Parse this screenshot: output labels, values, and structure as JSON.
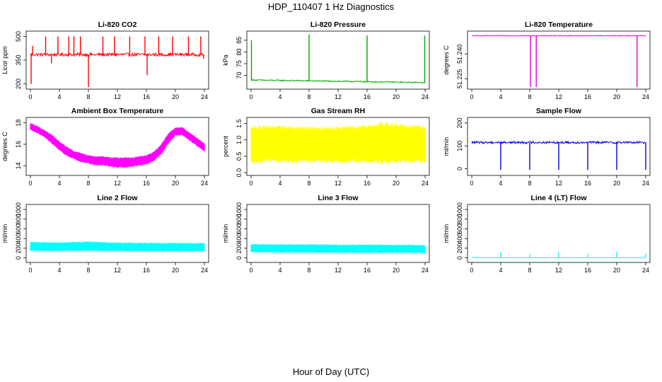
{
  "page": {
    "title": "HDP_110407  1 Hz Diagnostics",
    "x_axis_label": "Hour of Day (UTC)"
  },
  "chart_data": [
    {
      "type": "line",
      "title": "Li-820 CO2",
      "ylabel": "Licor ppm",
      "color": "#ff0000",
      "xlim": [
        0,
        24
      ],
      "ylim": [
        180,
        520
      ],
      "x_ticks": [
        0,
        4,
        8,
        12,
        16,
        20,
        24
      ],
      "y_ticks": [
        200,
        350,
        500
      ],
      "pattern": "baseline_spikes",
      "baseline": 385,
      "noise": 10,
      "spikes": [
        {
          "x": 0.1,
          "y": 200
        },
        {
          "x": 0.3,
          "y": 440
        },
        {
          "x": 2.1,
          "y": 500
        },
        {
          "x": 2.9,
          "y": 330
        },
        {
          "x": 3.8,
          "y": 500
        },
        {
          "x": 5.3,
          "y": 500
        },
        {
          "x": 6.0,
          "y": 500
        },
        {
          "x": 6.9,
          "y": 500
        },
        {
          "x": 8.0,
          "y": 180
        },
        {
          "x": 10.0,
          "y": 500
        },
        {
          "x": 11.6,
          "y": 500
        },
        {
          "x": 13.7,
          "y": 500
        },
        {
          "x": 15.8,
          "y": 500
        },
        {
          "x": 16.1,
          "y": 255
        },
        {
          "x": 17.7,
          "y": 500
        },
        {
          "x": 19.6,
          "y": 500
        },
        {
          "x": 21.8,
          "y": 500
        },
        {
          "x": 23.5,
          "y": 500
        },
        {
          "x": 23.9,
          "y": 360
        }
      ]
    },
    {
      "type": "line",
      "title": "Li-820 Pressure",
      "ylabel": "kPa",
      "color": "#00aa00",
      "xlim": [
        0,
        24
      ],
      "ylim": [
        65,
        88
      ],
      "x_ticks": [
        0,
        4,
        8,
        12,
        16,
        20,
        24
      ],
      "y_ticks": [
        70,
        75,
        80,
        85
      ],
      "pattern": "baseline_spikes",
      "baseline_start": 68.0,
      "baseline_end": 66.9,
      "noise": 0.25,
      "spikes": [
        {
          "x": 0.05,
          "y": 85
        },
        {
          "x": 8.0,
          "y": 87.5
        },
        {
          "x": 16.0,
          "y": 87
        },
        {
          "x": 23.95,
          "y": 87
        }
      ]
    },
    {
      "type": "line",
      "title": "Li-820 Temperature",
      "ylabel": "degrees C",
      "color": "#dd00dd",
      "xlim": [
        0,
        24
      ],
      "ylim": [
        51.22,
        51.2525
      ],
      "x_ticks": [
        0,
        4,
        8,
        12,
        16,
        20,
        24
      ],
      "y_ticks": [
        51.225,
        51.24
      ],
      "y_tick_labels": [
        "51.225",
        "51.240"
      ],
      "pattern": "baseline_spikes",
      "baseline": 51.251,
      "noise": 0.0002,
      "spikes": [
        {
          "x": 8.1,
          "y": 51.22
        },
        {
          "x": 8.9,
          "y": 51.22
        },
        {
          "x": 22.8,
          "y": 51.22
        }
      ]
    },
    {
      "type": "area",
      "title": "Ambient Box Temperature",
      "ylabel": "degrees C",
      "color": "#ff00ff",
      "xlim": [
        0,
        24
      ],
      "ylim": [
        13.3,
        18.3
      ],
      "x_ticks": [
        0,
        4,
        8,
        12,
        16,
        20,
        24
      ],
      "y_ticks": [
        14,
        16,
        18
      ],
      "pattern": "band",
      "x": [
        0,
        1,
        2,
        3,
        4,
        5,
        6,
        7,
        8,
        9,
        10,
        11,
        12,
        13,
        14,
        15,
        16,
        17,
        18,
        19,
        20,
        21,
        22,
        23,
        24
      ],
      "low": [
        17.3,
        17.0,
        16.6,
        16.0,
        15.4,
        14.9,
        14.6,
        14.3,
        14.2,
        14.0,
        14.0,
        13.9,
        13.8,
        13.8,
        13.9,
        14.0,
        14.1,
        14.4,
        15.0,
        16.0,
        16.8,
        16.8,
        16.3,
        15.8,
        15.3
      ],
      "high": [
        18.0,
        17.7,
        17.3,
        16.9,
        16.3,
        15.8,
        15.4,
        15.2,
        15.0,
        14.9,
        14.9,
        14.8,
        14.8,
        14.8,
        14.8,
        14.9,
        15.0,
        15.3,
        16.0,
        17.0,
        17.6,
        17.6,
        17.1,
        16.6,
        16.1
      ]
    },
    {
      "type": "area",
      "title": "Gas Stream RH",
      "ylabel": "percent",
      "color": "#ffff00",
      "xlim": [
        0,
        24
      ],
      "ylim": [
        -0.02,
        1.62
      ],
      "x_ticks": [
        0,
        4,
        8,
        12,
        16,
        20,
        24
      ],
      "y_ticks": [
        0.0,
        0.5,
        1.0,
        1.5
      ],
      "y_tick_labels": [
        "0.0",
        "0.5",
        "1.0",
        "1.5"
      ],
      "pattern": "band",
      "x": [
        0,
        2,
        4,
        6,
        8,
        10,
        12,
        14,
        16,
        18,
        20,
        22,
        24
      ],
      "low": [
        0.25,
        0.3,
        0.3,
        0.28,
        0.3,
        0.3,
        0.28,
        0.3,
        0.3,
        0.25,
        0.3,
        0.3,
        0.28
      ],
      "high": [
        1.45,
        1.45,
        1.45,
        1.4,
        1.4,
        1.4,
        1.4,
        1.45,
        1.45,
        1.55,
        1.5,
        1.45,
        1.45
      ]
    },
    {
      "type": "line",
      "title": "Sample Flow",
      "ylabel": "ml/min",
      "color": "#0000dd",
      "xlim": [
        0,
        24
      ],
      "ylim": [
        -20,
        215
      ],
      "x_ticks": [
        0,
        4,
        8,
        12,
        16,
        20,
        24
      ],
      "y_ticks": [
        0,
        100,
        200
      ],
      "pattern": "baseline_spikes",
      "baseline": 115,
      "noise": 5,
      "spikes": [
        {
          "x": 4.0,
          "y": -5
        },
        {
          "x": 8.0,
          "y": -5
        },
        {
          "x": 12.0,
          "y": -5
        },
        {
          "x": 16.0,
          "y": -5
        },
        {
          "x": 20.0,
          "y": -5
        },
        {
          "x": 24.0,
          "y": -5
        }
      ]
    },
    {
      "type": "area",
      "title": "Line 2 Flow",
      "ylabel": "ml/min",
      "color": "#00ffff",
      "xlim": [
        0,
        24
      ],
      "ylim": [
        -50,
        1060
      ],
      "x_ticks": [
        0,
        4,
        8,
        12,
        16,
        20,
        24
      ],
      "y_ticks": [
        0,
        200,
        400,
        600,
        800,
        1000
      ],
      "pattern": "band",
      "x": [
        0,
        4,
        8,
        12,
        16,
        20,
        24
      ],
      "low": [
        140,
        135,
        140,
        135,
        130,
        130,
        130
      ],
      "high": [
        340,
        320,
        345,
        320,
        315,
        315,
        310
      ]
    },
    {
      "type": "area",
      "title": "Line 3 Flow",
      "ylabel": "ml/min",
      "color": "#00ffff",
      "xlim": [
        0,
        24
      ],
      "ylim": [
        -50,
        1060
      ],
      "x_ticks": [
        0,
        4,
        8,
        12,
        16,
        20,
        24
      ],
      "y_ticks": [
        0,
        200,
        400,
        600,
        800,
        1000
      ],
      "pattern": "band",
      "x": [
        0,
        4,
        8,
        12,
        16,
        20,
        24
      ],
      "low": [
        110,
        105,
        105,
        100,
        100,
        100,
        95
      ],
      "high": [
        290,
        285,
        285,
        280,
        280,
        275,
        270
      ]
    },
    {
      "type": "line",
      "title": "Line 4 (LT) Flow",
      "ylabel": "ml/min",
      "color": "#00ffff",
      "xlim": [
        0,
        24
      ],
      "ylim": [
        -50,
        1060
      ],
      "x_ticks": [
        0,
        4,
        8,
        12,
        16,
        20,
        24
      ],
      "y_ticks": [
        0,
        200,
        400,
        600,
        800,
        1000
      ],
      "pattern": "baseline_spikes",
      "baseline": 5,
      "noise": 0,
      "spikes": [
        {
          "x": 4.0,
          "y": 120
        },
        {
          "x": 8.0,
          "y": 80
        },
        {
          "x": 12.0,
          "y": 120
        },
        {
          "x": 16.0,
          "y": 80
        },
        {
          "x": 20.0,
          "y": 120
        },
        {
          "x": 24.0,
          "y": 90
        }
      ]
    }
  ]
}
